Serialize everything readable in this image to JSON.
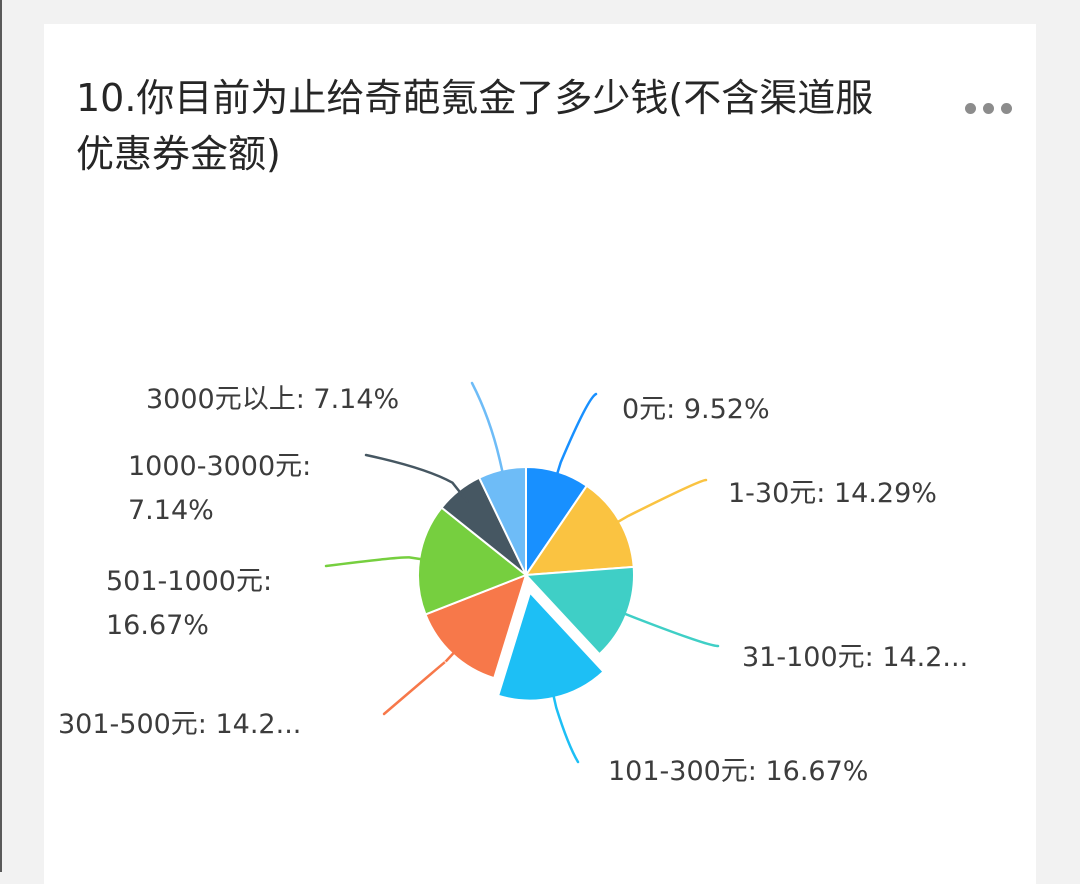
{
  "question": {
    "title": "10.你目前为止给奇葩氪金了多少钱(不含渠道服优惠券金额)",
    "more_icon": "more-horizontal-icon"
  },
  "chart_data": {
    "type": "pie",
    "title": "10.你目前为止给奇葩氪金了多少钱(不含渠道服优惠券金额)",
    "exploded": "101-300元",
    "slices": [
      {
        "category": "0元",
        "value": 9.52,
        "color": "#1890ff",
        "label_lines": [
          "0元: 9.52%"
        ]
      },
      {
        "category": "1-30元",
        "value": 14.29,
        "color": "#fac341",
        "label_lines": [
          "1-30元: 14.29%"
        ]
      },
      {
        "category": "31-100元",
        "value": 14.29,
        "color": "#3fcfc6",
        "label_lines": [
          "31-100元: 14.2..."
        ]
      },
      {
        "category": "101-300元",
        "value": 16.67,
        "color": "#1dbff5",
        "label_lines": [
          "101-300元: 16.67%"
        ]
      },
      {
        "category": "301-500元",
        "value": 14.29,
        "color": "#f7784a",
        "label_lines": [
          "301-500元: 14.2..."
        ]
      },
      {
        "category": "501-1000元",
        "value": 16.67,
        "color": "#76cf3f",
        "label_lines": [
          "501-1000元:",
          "16.67%"
        ]
      },
      {
        "category": "1000-3000元",
        "value": 7.14,
        "color": "#465762",
        "label_lines": [
          "1000-3000元:",
          "7.14%"
        ]
      },
      {
        "category": "3000元以上",
        "value": 7.14,
        "color": "#6ebcf7",
        "label_lines": [
          "3000元以上: 7.14%"
        ]
      }
    ]
  }
}
